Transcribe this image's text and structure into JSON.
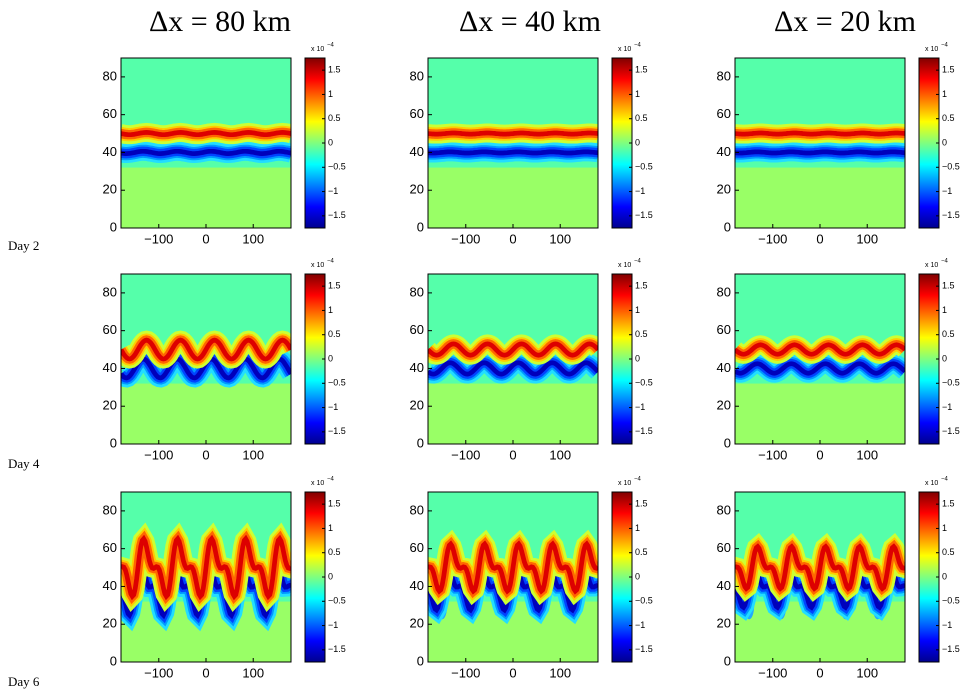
{
  "column_titles": [
    "Δx = 80 km",
    "Δx = 40 km",
    "Δx = 20 km"
  ],
  "row_labels": [
    "Day 2",
    "Day 4",
    "Day 6"
  ],
  "chart_data": {
    "type": "contour",
    "xlim": [
      -180,
      180
    ],
    "xticks": [
      {
        "value": -100,
        "label": "−100"
      },
      0,
      100
    ],
    "ylim": [
      0,
      90
    ],
    "yticks": [
      0,
      20,
      40,
      60,
      80
    ],
    "colorbar": {
      "lim": [
        -1.75,
        1.75
      ],
      "ticks": [
        {
          "value": -1.5,
          "label": "−1.5"
        },
        {
          "value": -1,
          "label": "−1"
        },
        {
          "value": -0.5,
          "label": "−0.5"
        },
        0,
        0.5,
        1,
        1.5
      ],
      "multiplier": "x 10",
      "exponent": "−4"
    }
  }
}
